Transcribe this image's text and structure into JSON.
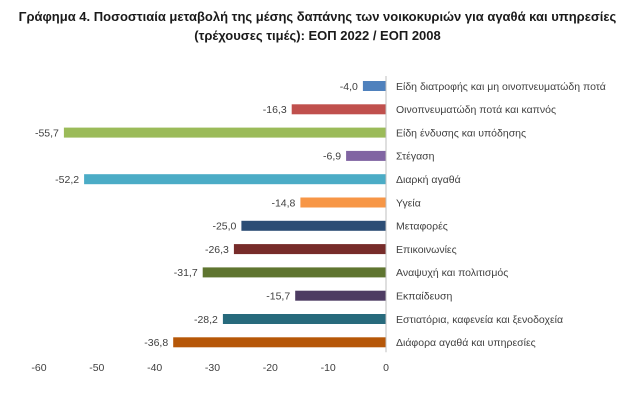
{
  "title_line1": "Γράφημα 4. Ποσοστιαία μεταβολή της μέσης δαπάνης των νοικοκυριών για αγαθά και υπηρεσίες",
  "title_line2": "(τρέχουσες τιμές): ΕΟΠ 2022 / ΕΟΠ 2008",
  "chart_data": {
    "type": "bar",
    "orientation": "horizontal",
    "title": "Γράφημα 4. Ποσοστιαία μεταβολή της μέσης δαπάνης των νοικοκυριών για αγαθά και υπηρεσίες (τρέχουσες τιμές): ΕΟΠ 2022 / ΕΟΠ 2008",
    "categories": [
      "Είδη διατροφής και μη οινοπνευματώδη ποτά",
      "Οινοπνευματώδη ποτά και καπνός",
      "Είδη ένδυσης και υπόδησης",
      "Στέγαση",
      "Διαρκή αγαθά",
      "Υγεία",
      "Μεταφορές",
      "Επικοινωνίες",
      "Αναψυχή και πολιτισμός",
      "Εκπαίδευση",
      "Εστιατόρια, καφενεία  και ξενοδοχεία",
      "Διάφορα αγαθά και υπηρεσίες"
    ],
    "values": [
      -4.0,
      -16.3,
      -55.7,
      -6.9,
      -52.2,
      -14.8,
      -25.0,
      -26.3,
      -31.7,
      -15.7,
      -28.2,
      -36.8
    ],
    "value_labels": [
      "-4,0",
      "-16,3",
      "-55,7",
      "-6,9",
      "-52,2",
      "-14,8",
      "-25,0",
      "-26,3",
      "-31,7",
      "-15,7",
      "-28,2",
      "-36,8"
    ],
    "colors": [
      "#4f81bd",
      "#c0504d",
      "#9bbb59",
      "#8064a2",
      "#4bacc6",
      "#f79646",
      "#2c4d75",
      "#772c2a",
      "#5f7530",
      "#4d3b62",
      "#276a7c",
      "#b65708"
    ],
    "xlim": [
      -60,
      0
    ],
    "xticks": [
      -60,
      -50,
      -40,
      -30,
      -20,
      -10,
      0
    ],
    "xtick_labels": [
      "-60",
      "-50",
      "-40",
      "-30",
      "-20",
      "-10",
      "0"
    ],
    "grid": false,
    "legend": "none"
  }
}
